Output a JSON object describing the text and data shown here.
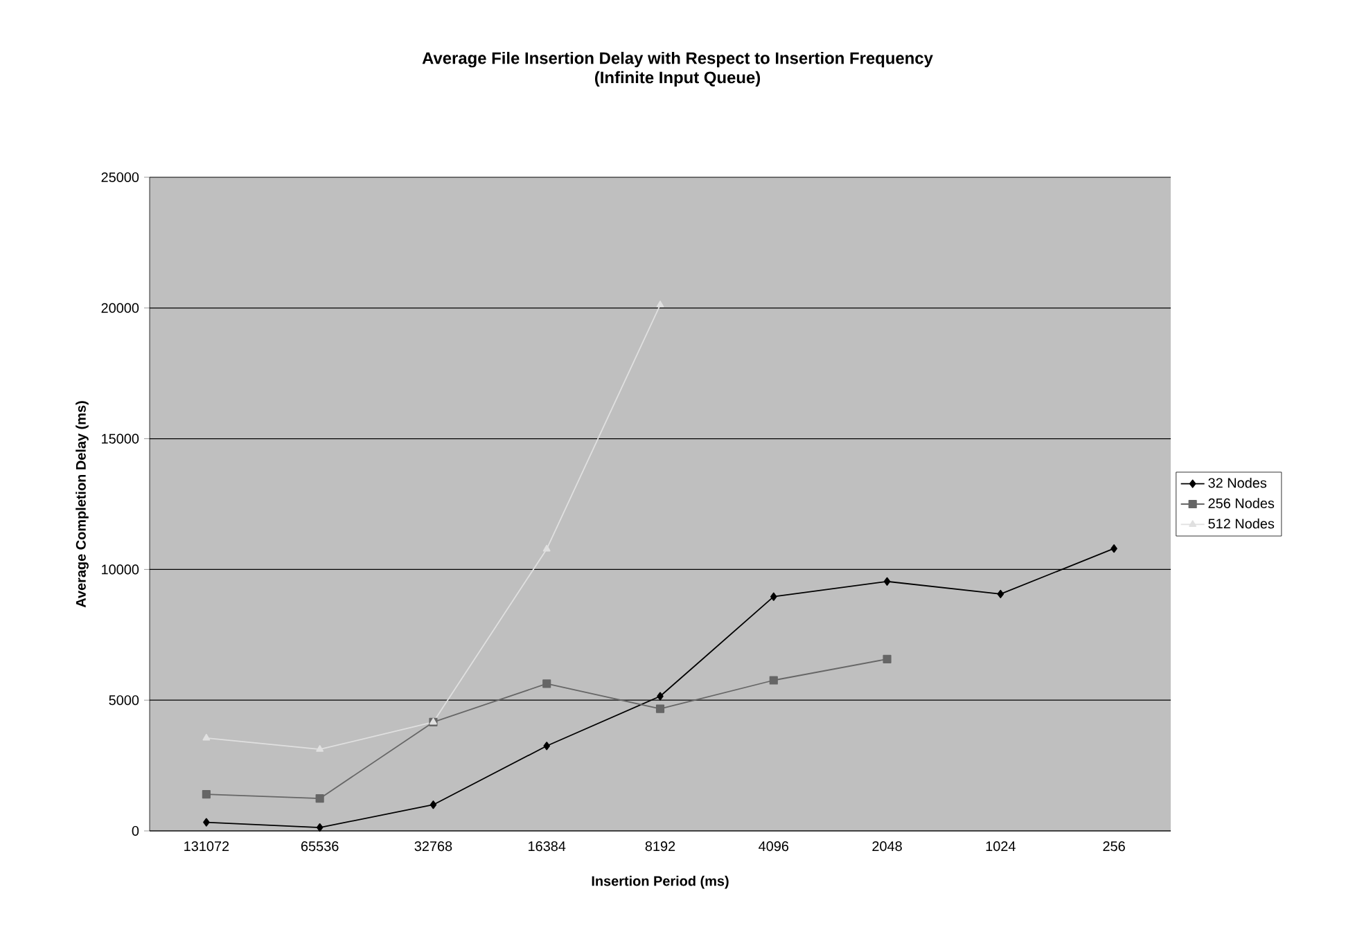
{
  "chart_data": {
    "type": "line",
    "title": "Average File Insertion Delay with Respect to Insertion Frequency",
    "subtitle": "(Infinite Input Queue)",
    "xlabel": "Insertion Period (ms)",
    "ylabel": "Average Completion Delay (ms)",
    "categories": [
      "131072",
      "65536",
      "32768",
      "16384",
      "8192",
      "4096",
      "2048",
      "1024",
      "256"
    ],
    "series": [
      {
        "name": "32 Nodes",
        "color": "#000000",
        "marker": "diamond",
        "values": [
          330,
          130,
          1000,
          3250,
          5150,
          8960,
          9540,
          9060,
          10800
        ]
      },
      {
        "name": "256 Nodes",
        "color": "#666666",
        "marker": "square",
        "values": [
          1400,
          1240,
          4160,
          5630,
          4670,
          5760,
          6570,
          null,
          null
        ]
      },
      {
        "name": "512 Nodes",
        "color": "#e0e0e0",
        "marker": "triangle",
        "values": [
          3550,
          3120,
          4160,
          10780,
          20120,
          null,
          null,
          null,
          null
        ]
      }
    ],
    "ylim": [
      0,
      25000
    ],
    "yticks": [
      0,
      5000,
      10000,
      15000,
      20000,
      25000
    ],
    "grid": "y",
    "legend": "right"
  }
}
